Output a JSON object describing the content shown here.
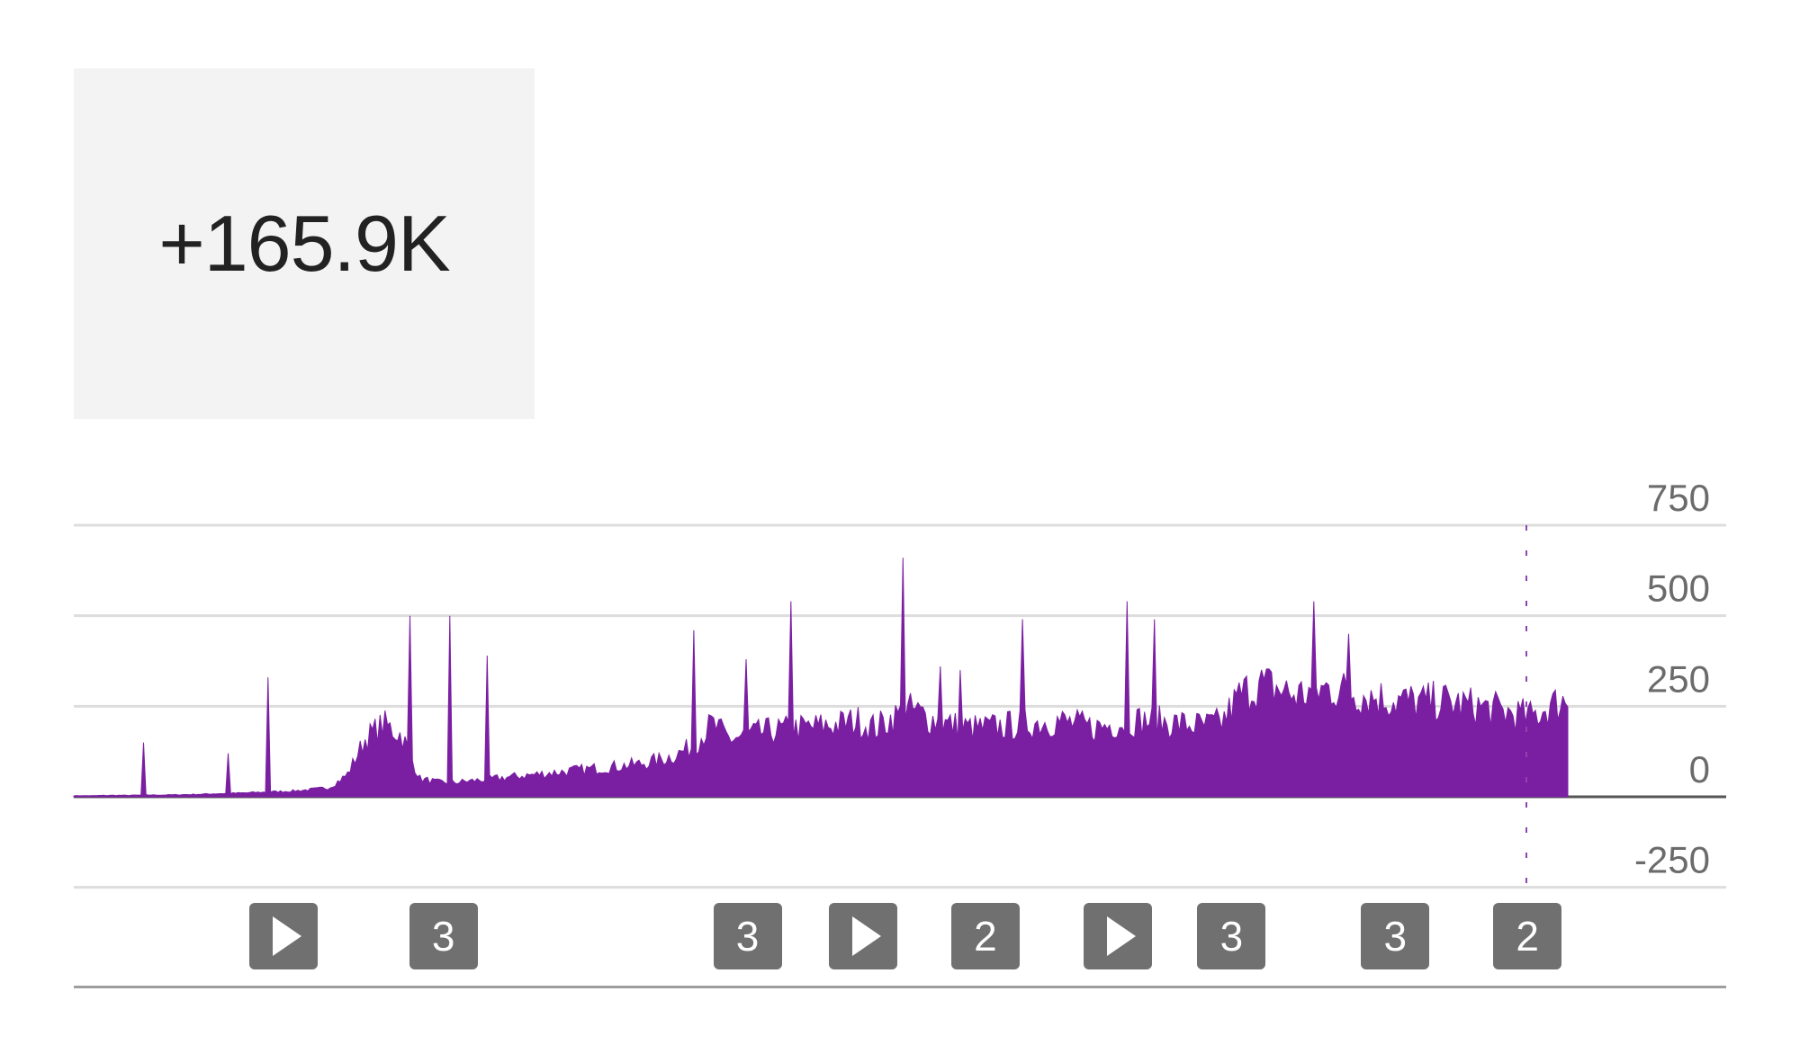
{
  "summary": {
    "value": "+165.9K"
  },
  "chart_data": {
    "type": "area",
    "title": "",
    "xlabel": "",
    "ylabel": "",
    "ylim": [
      -250,
      750
    ],
    "y_ticks": [
      "750",
      "500",
      "250",
      "0",
      "-250"
    ],
    "grid": true,
    "series_color": "#7b1fa2",
    "series": [
      {
        "values": [
          3,
          3,
          4,
          4,
          5,
          5,
          6,
          7,
          9,
          10,
          12,
          14,
          16,
          20,
          25,
          60,
          160,
          200,
          170,
          50,
          40,
          40,
          45,
          50,
          55,
          60,
          65,
          70,
          75,
          80,
          85,
          90,
          100,
          115,
          140,
          200,
          160,
          170,
          180,
          185,
          190,
          195,
          200,
          210,
          190,
          220,
          240,
          215,
          200,
          190,
          190,
          195,
          200,
          205,
          210,
          200,
          190,
          200,
          210,
          210,
          205,
          200,
          195,
          205,
          280,
          310,
          300,
          280,
          290,
          300,
          290,
          280,
          270,
          265,
          260,
          265,
          255,
          250,
          240,
          230,
          220,
          250,
          270
        ]
      }
    ],
    "spikes": [
      {
        "x": 0.047,
        "value": 150
      },
      {
        "x": 0.104,
        "value": 120
      },
      {
        "x": 0.13,
        "value": 330
      },
      {
        "x": 0.225,
        "value": 500
      },
      {
        "x": 0.252,
        "value": 500
      },
      {
        "x": 0.277,
        "value": 390
      },
      {
        "x": 0.415,
        "value": 460
      },
      {
        "x": 0.45,
        "value": 380
      },
      {
        "x": 0.48,
        "value": 540
      },
      {
        "x": 0.555,
        "value": 660
      },
      {
        "x": 0.58,
        "value": 360
      },
      {
        "x": 0.594,
        "value": 350
      },
      {
        "x": 0.635,
        "value": 490
      },
      {
        "x": 0.705,
        "value": 540
      },
      {
        "x": 0.723,
        "value": 490
      },
      {
        "x": 0.83,
        "value": 540
      },
      {
        "x": 0.853,
        "value": 450
      }
    ]
  },
  "markers": [
    {
      "label": "",
      "kind": "play",
      "x": 0.106
    },
    {
      "label": "3",
      "kind": "count",
      "x": 0.203
    },
    {
      "label": "3",
      "kind": "count",
      "x": 0.387
    },
    {
      "label": "",
      "kind": "play",
      "x": 0.457
    },
    {
      "label": "2",
      "kind": "count",
      "x": 0.531
    },
    {
      "label": "",
      "kind": "play",
      "x": 0.611
    },
    {
      "label": "3",
      "kind": "count",
      "x": 0.68
    },
    {
      "label": "3",
      "kind": "count",
      "x": 0.779
    },
    {
      "label": "2",
      "kind": "count",
      "x": 0.859
    }
  ]
}
